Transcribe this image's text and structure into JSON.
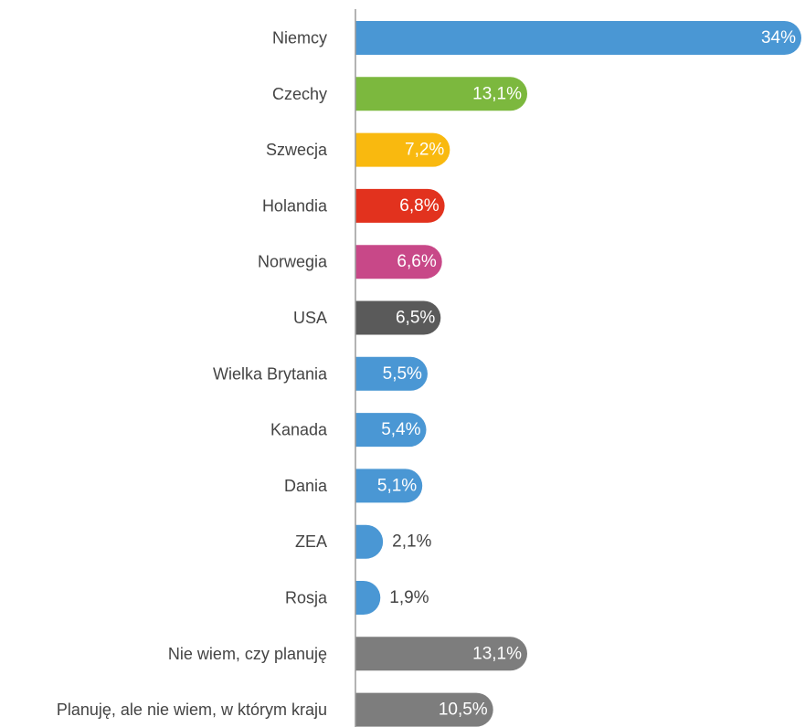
{
  "chart_data": {
    "type": "bar",
    "orientation": "horizontal",
    "categories": [
      "Niemcy",
      "Czechy",
      "Szwecja",
      "Holandia",
      "Norwegia",
      "USA",
      "Wielka Brytania",
      "Kanada",
      "Dania",
      "ZEA",
      "Rosja",
      "Nie wiem, czy planuję",
      "Planuję, ale nie wiem, w którym kraju"
    ],
    "values": [
      34,
      13.1,
      7.2,
      6.8,
      6.6,
      6.5,
      5.5,
      5.4,
      5.1,
      2.1,
      1.9,
      13.1,
      10.5
    ],
    "value_labels": [
      "34%",
      "13,1%",
      "7,2%",
      "6,8%",
      "6,6%",
      "6,5%",
      "5,5%",
      "5,4%",
      "5,1%",
      "2,1%",
      "1,9%",
      "13,1%",
      "10,5%"
    ],
    "colors": [
      "#4a97d4",
      "#7cb83e",
      "#f9b90f",
      "#e2321e",
      "#c84888",
      "#5a5a5a",
      "#4a97d4",
      "#4a97d4",
      "#4a97d4",
      "#4a97d4",
      "#4a97d4",
      "#7d7d7d",
      "#7d7d7d"
    ],
    "xlim": [
      0,
      34
    ],
    "grid": false,
    "legend": "none"
  }
}
